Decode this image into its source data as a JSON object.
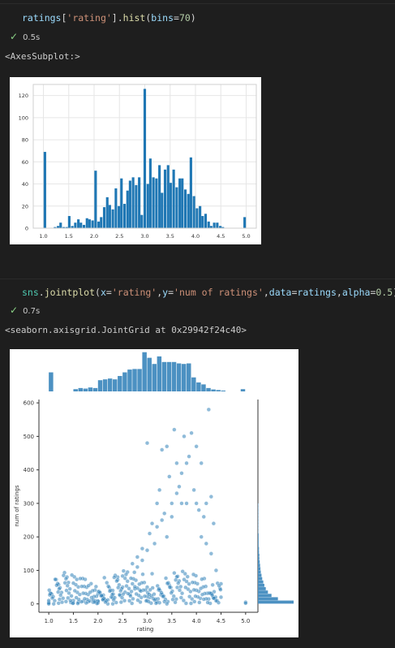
{
  "cells": [
    {
      "code_tokens": [
        {
          "t": "ratings",
          "c": "c-name"
        },
        {
          "t": "[",
          "c": "c-punc"
        },
        {
          "t": "'rating'",
          "c": "c-str"
        },
        {
          "t": "].",
          "c": "c-punc"
        },
        {
          "t": "hist",
          "c": "c-func"
        },
        {
          "t": "(",
          "c": "c-punc"
        },
        {
          "t": "bins",
          "c": "c-name"
        },
        {
          "t": "=",
          "c": "c-punc"
        },
        {
          "t": "70",
          "c": "c-num"
        },
        {
          "t": ")",
          "c": "c-punc"
        }
      ],
      "exec_time": "0.5s",
      "output_text": "<AxesSubplot:>"
    },
    {
      "code_tokens": [
        {
          "t": "sns",
          "c": "c-kw"
        },
        {
          "t": ".",
          "c": "c-punc"
        },
        {
          "t": "jointplot",
          "c": "c-func"
        },
        {
          "t": "(",
          "c": "c-punc"
        },
        {
          "t": "x",
          "c": "c-name"
        },
        {
          "t": "=",
          "c": "c-punc"
        },
        {
          "t": "'rating'",
          "c": "c-str"
        },
        {
          "t": ",",
          "c": "c-punc"
        },
        {
          "t": "y",
          "c": "c-name"
        },
        {
          "t": "=",
          "c": "c-punc"
        },
        {
          "t": "'num of ratings'",
          "c": "c-str"
        },
        {
          "t": ",",
          "c": "c-punc"
        },
        {
          "t": "data",
          "c": "c-name"
        },
        {
          "t": "=",
          "c": "c-punc"
        },
        {
          "t": "ratings",
          "c": "c-name"
        },
        {
          "t": ",",
          "c": "c-punc"
        },
        {
          "t": "alpha",
          "c": "c-name"
        },
        {
          "t": "=",
          "c": "c-punc"
        },
        {
          "t": "0.5",
          "c": "c-num"
        },
        {
          "t": ")",
          "c": "c-punc"
        }
      ],
      "exec_time": "0.7s",
      "output_text": "<seaborn.axisgrid.JointGrid at 0x29942f24c40>"
    }
  ],
  "colors": {
    "bar": "#1f77b4",
    "hist_bar": "#4c91c2",
    "grid": "#e6e6e6"
  },
  "chart_data": [
    {
      "type": "bar",
      "title": "",
      "xlabel": "",
      "ylabel": "",
      "xlim": [
        0.8,
        5.2
      ],
      "ylim": [
        0,
        130
      ],
      "grid": true,
      "xticks": [
        "1.0",
        "1.5",
        "2.0",
        "2.5",
        "3.0",
        "3.5",
        "4.0",
        "4.5",
        "5.0"
      ],
      "yticks": [
        "0",
        "20",
        "40",
        "60",
        "80",
        "100",
        "120"
      ],
      "bins": [
        {
          "x": 1.03,
          "v": 69
        },
        {
          "x": 1.23,
          "v": 1
        },
        {
          "x": 1.29,
          "v": 2
        },
        {
          "x": 1.34,
          "v": 5
        },
        {
          "x": 1.4,
          "v": 1
        },
        {
          "x": 1.46,
          "v": 1
        },
        {
          "x": 1.51,
          "v": 11
        },
        {
          "x": 1.57,
          "v": 2
        },
        {
          "x": 1.63,
          "v": 5
        },
        {
          "x": 1.69,
          "v": 8
        },
        {
          "x": 1.74,
          "v": 5
        },
        {
          "x": 1.8,
          "v": 3
        },
        {
          "x": 1.86,
          "v": 9
        },
        {
          "x": 1.91,
          "v": 8
        },
        {
          "x": 1.97,
          "v": 7
        },
        {
          "x": 2.03,
          "v": 52
        },
        {
          "x": 2.09,
          "v": 6
        },
        {
          "x": 2.14,
          "v": 10
        },
        {
          "x": 2.2,
          "v": 19
        },
        {
          "x": 2.26,
          "v": 28
        },
        {
          "x": 2.31,
          "v": 21
        },
        {
          "x": 2.37,
          "v": 17
        },
        {
          "x": 2.43,
          "v": 36
        },
        {
          "x": 2.49,
          "v": 20
        },
        {
          "x": 2.54,
          "v": 45
        },
        {
          "x": 2.6,
          "v": 22
        },
        {
          "x": 2.66,
          "v": 34
        },
        {
          "x": 2.71,
          "v": 43
        },
        {
          "x": 2.77,
          "v": 46
        },
        {
          "x": 2.83,
          "v": 39
        },
        {
          "x": 2.89,
          "v": 46
        },
        {
          "x": 2.94,
          "v": 12
        },
        {
          "x": 3.0,
          "v": 126
        },
        {
          "x": 3.06,
          "v": 40
        },
        {
          "x": 3.11,
          "v": 63
        },
        {
          "x": 3.17,
          "v": 46
        },
        {
          "x": 3.23,
          "v": 45
        },
        {
          "x": 3.29,
          "v": 57
        },
        {
          "x": 3.34,
          "v": 32
        },
        {
          "x": 3.4,
          "v": 53
        },
        {
          "x": 3.46,
          "v": 57
        },
        {
          "x": 3.51,
          "v": 41
        },
        {
          "x": 3.57,
          "v": 53
        },
        {
          "x": 3.63,
          "v": 37
        },
        {
          "x": 3.69,
          "v": 45
        },
        {
          "x": 3.74,
          "v": 45
        },
        {
          "x": 3.8,
          "v": 35
        },
        {
          "x": 3.86,
          "v": 31
        },
        {
          "x": 3.91,
          "v": 64
        },
        {
          "x": 3.97,
          "v": 29
        },
        {
          "x": 4.03,
          "v": 18
        },
        {
          "x": 4.09,
          "v": 20
        },
        {
          "x": 4.14,
          "v": 11
        },
        {
          "x": 4.2,
          "v": 13
        },
        {
          "x": 4.26,
          "v": 6
        },
        {
          "x": 4.31,
          "v": 2
        },
        {
          "x": 4.37,
          "v": 5
        },
        {
          "x": 4.43,
          "v": 5
        },
        {
          "x": 4.49,
          "v": 2
        },
        {
          "x": 4.54,
          "v": 1
        },
        {
          "x": 4.97,
          "v": 10
        }
      ]
    },
    {
      "type": "scatter",
      "title": "",
      "xlabel": "rating",
      "ylabel": "num of ratings",
      "xlim": [
        0.8,
        5.25
      ],
      "ylim": [
        -25,
        610
      ],
      "alpha": 0.5,
      "xticks": [
        "1.0",
        "1.5",
        "2.0",
        "2.5",
        "3.0",
        "3.5",
        "4.0",
        "4.5",
        "5.0"
      ],
      "yticks": [
        "0",
        "100",
        "200",
        "300",
        "400",
        "500",
        "600"
      ],
      "marginal_x": [
        {
          "x": 1.05,
          "v": 68
        },
        {
          "x": 1.55,
          "v": 8
        },
        {
          "x": 1.65,
          "v": 12
        },
        {
          "x": 1.75,
          "v": 10
        },
        {
          "x": 1.85,
          "v": 14
        },
        {
          "x": 1.95,
          "v": 12
        },
        {
          "x": 2.05,
          "v": 40
        },
        {
          "x": 2.15,
          "v": 43
        },
        {
          "x": 2.25,
          "v": 46
        },
        {
          "x": 2.35,
          "v": 43
        },
        {
          "x": 2.45,
          "v": 55
        },
        {
          "x": 2.55,
          "v": 68
        },
        {
          "x": 2.65,
          "v": 78
        },
        {
          "x": 2.75,
          "v": 80
        },
        {
          "x": 2.85,
          "v": 80
        },
        {
          "x": 2.95,
          "v": 140
        },
        {
          "x": 3.05,
          "v": 120
        },
        {
          "x": 3.15,
          "v": 98
        },
        {
          "x": 3.25,
          "v": 125
        },
        {
          "x": 3.35,
          "v": 105
        },
        {
          "x": 3.45,
          "v": 105
        },
        {
          "x": 3.55,
          "v": 105
        },
        {
          "x": 3.65,
          "v": 100
        },
        {
          "x": 3.75,
          "v": 98
        },
        {
          "x": 3.85,
          "v": 100
        },
        {
          "x": 3.95,
          "v": 50
        },
        {
          "x": 4.05,
          "v": 32
        },
        {
          "x": 4.15,
          "v": 25
        },
        {
          "x": 4.25,
          "v": 12
        },
        {
          "x": 4.35,
          "v": 7
        },
        {
          "x": 4.45,
          "v": 5
        },
        {
          "x": 4.55,
          "v": 3
        },
        {
          "x": 4.95,
          "v": 8
        }
      ],
      "marginal_y": [
        {
          "y": 5,
          "v": 100
        },
        {
          "y": 15,
          "v": 56
        },
        {
          "y": 25,
          "v": 38
        },
        {
          "y": 35,
          "v": 28
        },
        {
          "y": 45,
          "v": 22
        },
        {
          "y": 55,
          "v": 18
        },
        {
          "y": 65,
          "v": 15
        },
        {
          "y": 75,
          "v": 12
        },
        {
          "y": 85,
          "v": 10
        },
        {
          "y": 95,
          "v": 8
        },
        {
          "y": 105,
          "v": 7
        },
        {
          "y": 115,
          "v": 6
        },
        {
          "y": 125,
          "v": 5
        },
        {
          "y": 135,
          "v": 4
        },
        {
          "y": 145,
          "v": 4
        },
        {
          "y": 155,
          "v": 3
        },
        {
          "y": 165,
          "v": 3
        },
        {
          "y": 175,
          "v": 2
        },
        {
          "y": 185,
          "v": 2
        },
        {
          "y": 195,
          "v": 2
        },
        {
          "y": 205,
          "v": 2
        },
        {
          "y": 215,
          "v": 1
        },
        {
          "y": 225,
          "v": 1
        },
        {
          "y": 235,
          "v": 1
        },
        {
          "y": 245,
          "v": 1
        },
        {
          "y": 255,
          "v": 1
        },
        {
          "y": 265,
          "v": 1
        },
        {
          "y": 275,
          "v": 1
        },
        {
          "y": 285,
          "v": 1
        },
        {
          "y": 295,
          "v": 1
        }
      ],
      "points": [
        [
          1.0,
          5
        ],
        [
          1.0,
          10
        ],
        [
          1.0,
          3
        ],
        [
          1.5,
          3
        ],
        [
          1.5,
          10
        ],
        [
          1.6,
          5
        ],
        [
          1.7,
          8
        ],
        [
          1.9,
          5
        ],
        [
          2.0,
          30
        ],
        [
          2.0,
          8
        ],
        [
          2.0,
          3
        ],
        [
          2.2,
          12
        ],
        [
          2.3,
          40
        ],
        [
          2.4,
          80
        ],
        [
          2.5,
          50
        ],
        [
          2.6,
          95
        ],
        [
          2.7,
          120
        ],
        [
          2.7,
          60
        ],
        [
          2.8,
          110
        ],
        [
          2.8,
          140
        ],
        [
          2.9,
          130
        ],
        [
          2.9,
          165
        ],
        [
          3.0,
          160
        ],
        [
          3.0,
          50
        ],
        [
          3.0,
          10
        ],
        [
          3.0,
          480
        ],
        [
          3.05,
          210
        ],
        [
          3.1,
          240
        ],
        [
          3.1,
          90
        ],
        [
          3.15,
          180
        ],
        [
          3.2,
          230
        ],
        [
          3.2,
          300
        ],
        [
          3.25,
          340
        ],
        [
          3.3,
          460
        ],
        [
          3.3,
          250
        ],
        [
          3.35,
          270
        ],
        [
          3.4,
          470
        ],
        [
          3.4,
          200
        ],
        [
          3.45,
          380
        ],
        [
          3.5,
          300
        ],
        [
          3.5,
          260
        ],
        [
          3.55,
          520
        ],
        [
          3.6,
          420
        ],
        [
          3.6,
          330
        ],
        [
          3.65,
          350
        ],
        [
          3.7,
          390
        ],
        [
          3.7,
          300
        ],
        [
          3.75,
          500
        ],
        [
          3.8,
          300
        ],
        [
          3.8,
          420
        ],
        [
          3.85,
          440
        ],
        [
          3.9,
          510
        ],
        [
          3.95,
          340
        ],
        [
          4.0,
          470
        ],
        [
          4.0,
          300
        ],
        [
          4.05,
          280
        ],
        [
          4.1,
          420
        ],
        [
          4.1,
          200
        ],
        [
          4.15,
          260
        ],
        [
          4.2,
          300
        ],
        [
          4.2,
          180
        ],
        [
          4.25,
          580
        ],
        [
          4.3,
          320
        ],
        [
          4.3,
          150
        ],
        [
          4.35,
          240
        ],
        [
          4.4,
          100
        ],
        [
          4.5,
          60
        ],
        [
          4.5,
          20
        ],
        [
          5.0,
          5
        ],
        [
          5.0,
          2
        ],
        [
          1.2,
          2
        ],
        [
          1.35,
          7
        ],
        [
          1.45,
          4
        ],
        [
          1.8,
          6
        ],
        [
          2.1,
          14
        ],
        [
          2.3,
          18
        ],
        [
          2.45,
          25
        ],
        [
          2.55,
          35
        ],
        [
          2.65,
          28
        ],
        [
          2.75,
          45
        ]
      ]
    }
  ]
}
